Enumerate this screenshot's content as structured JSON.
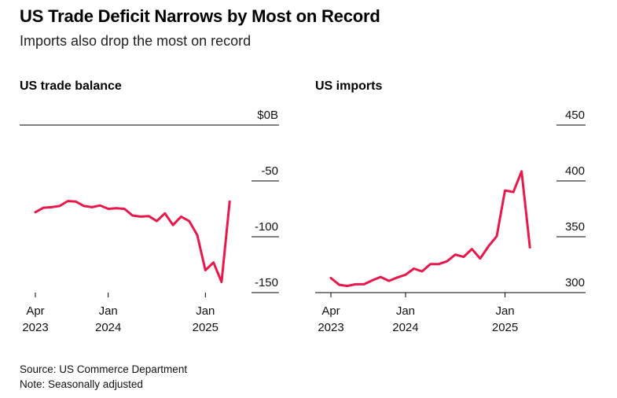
{
  "title": "US Trade Deficit Narrows by Most on Record",
  "subtitle": "Imports also drop the most on record",
  "source": "Source: US Commerce Department",
  "note": "Note: Seasonally adjusted",
  "colors": {
    "line": "#e8184b",
    "axis": "#000000"
  },
  "chart_data": [
    {
      "type": "line",
      "title": "US trade balance",
      "x": [
        "2023-04",
        "2023-05",
        "2023-06",
        "2023-07",
        "2023-08",
        "2023-09",
        "2023-10",
        "2023-11",
        "2023-12",
        "2024-01",
        "2024-02",
        "2024-03",
        "2024-04",
        "2024-05",
        "2024-06",
        "2024-07",
        "2024-08",
        "2024-09",
        "2024-10",
        "2024-11",
        "2024-12",
        "2025-01",
        "2025-02",
        "2025-03",
        "2025-04"
      ],
      "series": [
        {
          "values": [
            -78,
            -74,
            -73.5,
            -72.5,
            -68,
            -68.5,
            -72.5,
            -73.5,
            -72,
            -75,
            -74.5,
            -75,
            -81,
            -82,
            -81.5,
            -86,
            -79,
            -89.5,
            -82,
            -86,
            -98.5,
            -130,
            -123,
            -140.5,
            -68.5
          ]
        }
      ],
      "ylim": [
        -150,
        0
      ],
      "yticks": [
        0,
        -50,
        -100,
        -150
      ],
      "ytick_labels": [
        "$0B",
        "-50",
        "-100",
        "-150"
      ],
      "xticks": [
        "2023-04",
        "2024-01",
        "2025-01"
      ],
      "xtick_labels": [
        [
          "Apr",
          "2023"
        ],
        [
          "Jan",
          "2024"
        ],
        [
          "Jan",
          "2025"
        ]
      ]
    },
    {
      "type": "line",
      "title": "US imports",
      "x": [
        "2023-04",
        "2023-05",
        "2023-06",
        "2023-07",
        "2023-08",
        "2023-09",
        "2023-10",
        "2023-11",
        "2023-12",
        "2024-01",
        "2024-02",
        "2024-03",
        "2024-04",
        "2024-05",
        "2024-06",
        "2024-07",
        "2024-08",
        "2024-09",
        "2024-10",
        "2024-11",
        "2024-12",
        "2025-01",
        "2025-02",
        "2025-03",
        "2025-04"
      ],
      "series": [
        {
          "values": [
            313,
            307,
            306,
            307.5,
            307.5,
            311,
            314,
            310.5,
            313.5,
            316,
            321.5,
            319,
            325.5,
            325.5,
            328,
            334,
            332,
            339,
            330.5,
            341.5,
            350.5,
            391.5,
            390,
            408.5,
            340.5
          ]
        }
      ],
      "ylim": [
        300,
        450
      ],
      "yticks": [
        450,
        400,
        350,
        300
      ],
      "ytick_labels": [
        "450",
        "400",
        "350",
        "300"
      ],
      "xticks": [
        "2023-04",
        "2024-01",
        "2025-01"
      ],
      "xtick_labels": [
        [
          "Apr",
          "2023"
        ],
        [
          "Jan",
          "2024"
        ],
        [
          "Jan",
          "2025"
        ]
      ]
    }
  ]
}
